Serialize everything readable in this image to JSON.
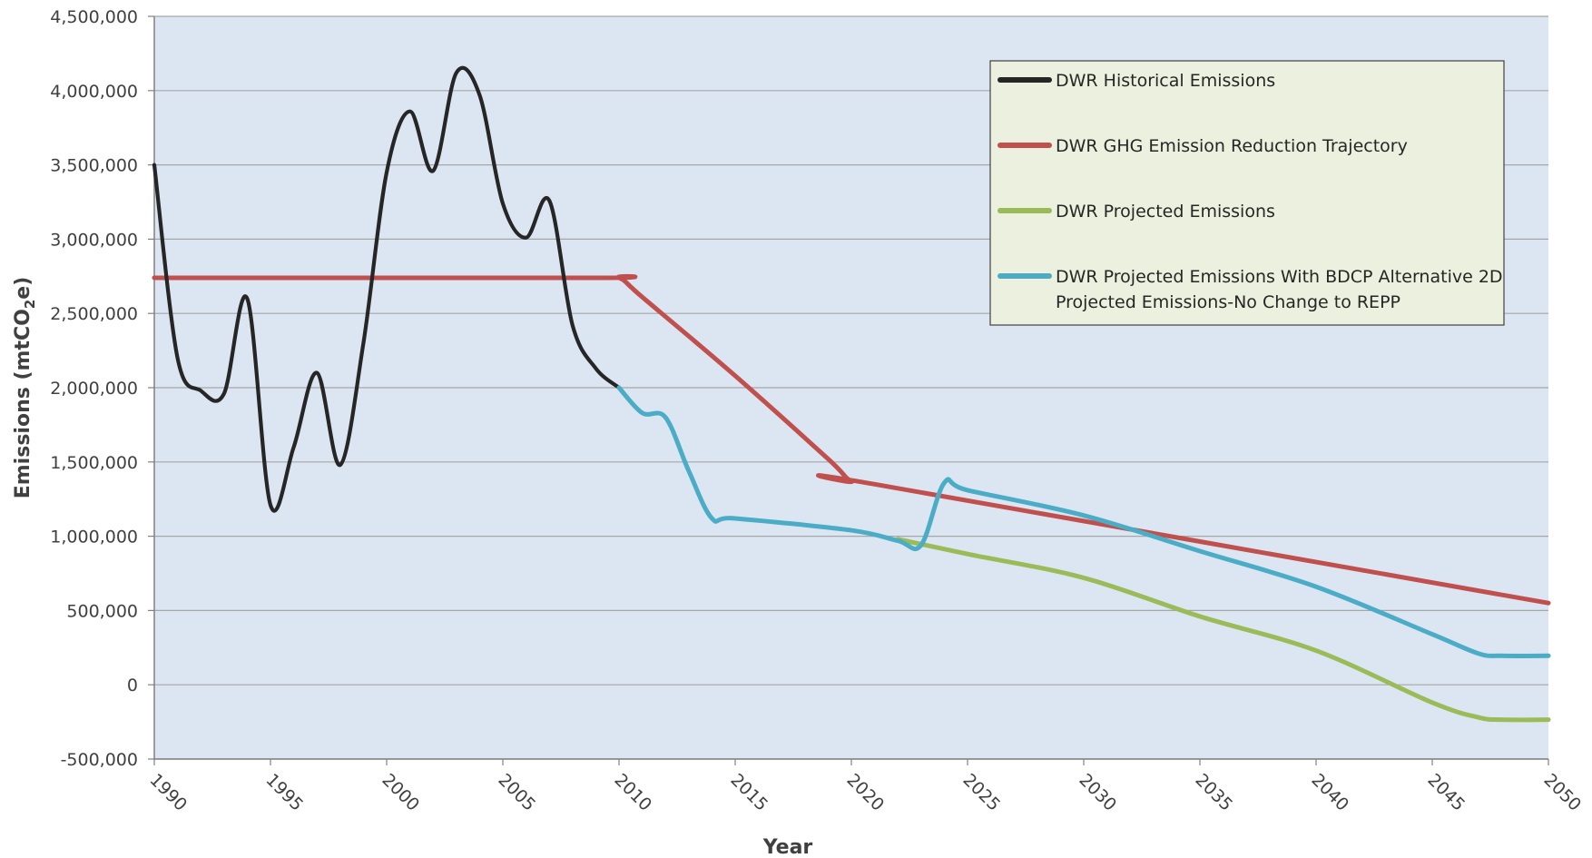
{
  "chart_data": {
    "type": "line",
    "title": "",
    "xlabel": "Year",
    "ylabel_main": "Emissions (mtCO",
    "ylabel_sub": "2",
    "ylabel_end": "e)",
    "xlim": [
      1990,
      2050
    ],
    "ylim": [
      -500000,
      4500000
    ],
    "x_ticks": [
      1990,
      1995,
      2000,
      2005,
      2010,
      2015,
      2020,
      2025,
      2030,
      2035,
      2040,
      2045,
      2050
    ],
    "y_ticks": [
      -500000,
      0,
      500000,
      1000000,
      1500000,
      2000000,
      2500000,
      3000000,
      3500000,
      4000000,
      4500000
    ],
    "y_tick_labels": [
      "-500,000",
      "0",
      "500,000",
      "1,000,000",
      "1,500,000",
      "2,000,000",
      "2,500,000",
      "3,000,000",
      "3,500,000",
      "4,000,000",
      "4,500,000"
    ],
    "grid": "horizontal",
    "legend_position": "top-right",
    "plot_background": "#dce6f2",
    "series": [
      {
        "name": "DWR Historical Emissions",
        "color": "#262626",
        "x": [
          1990,
          1991,
          1992,
          1993,
          1994,
          1995,
          1996,
          1997,
          1998,
          1999,
          2000,
          2001,
          2002,
          2003,
          2004,
          2005,
          2006,
          2007,
          2008,
          2009,
          2010
        ],
        "y": [
          3500000,
          2200000,
          1980000,
          1960000,
          2600000,
          1210000,
          1600000,
          2100000,
          1480000,
          2300000,
          3450000,
          3860000,
          3460000,
          4120000,
          3970000,
          3240000,
          3010000,
          3260000,
          2420000,
          2130000,
          2000000
        ]
      },
      {
        "name": "DWR GHG Emission Reduction Trajectory",
        "color": "#c0504d",
        "x": [
          1990,
          2009,
          2010,
          2011,
          2015,
          2019,
          2020,
          2021,
          2050
        ],
        "y": [
          2740000,
          2740000,
          2740000,
          2610000,
          2080000,
          1520000,
          1370000,
          1350000,
          550000
        ]
      },
      {
        "name": "DWR Projected Emissions",
        "color": "#9bbb59",
        "x": [
          2022,
          2025,
          2030,
          2035,
          2040,
          2045,
          2047,
          2048,
          2050
        ],
        "y": [
          980000,
          880000,
          720000,
          460000,
          230000,
          -120000,
          -220000,
          -235000,
          -235000
        ]
      },
      {
        "name": "DWR Projected Emissions With BDCP Alternative 2D",
        "name_line2": "Projected Emissions-No Change to REPP",
        "color": "#4bacc6",
        "x": [
          2010,
          2011,
          2012,
          2013,
          2014,
          2015,
          2020,
          2022,
          2023,
          2024,
          2025,
          2030,
          2035,
          2040,
          2045,
          2047,
          2048,
          2050
        ],
        "y": [
          2000000,
          1830000,
          1800000,
          1440000,
          1120000,
          1120000,
          1040000,
          970000,
          940000,
          1360000,
          1310000,
          1140000,
          900000,
          660000,
          340000,
          210000,
          195000,
          195000
        ]
      }
    ]
  }
}
